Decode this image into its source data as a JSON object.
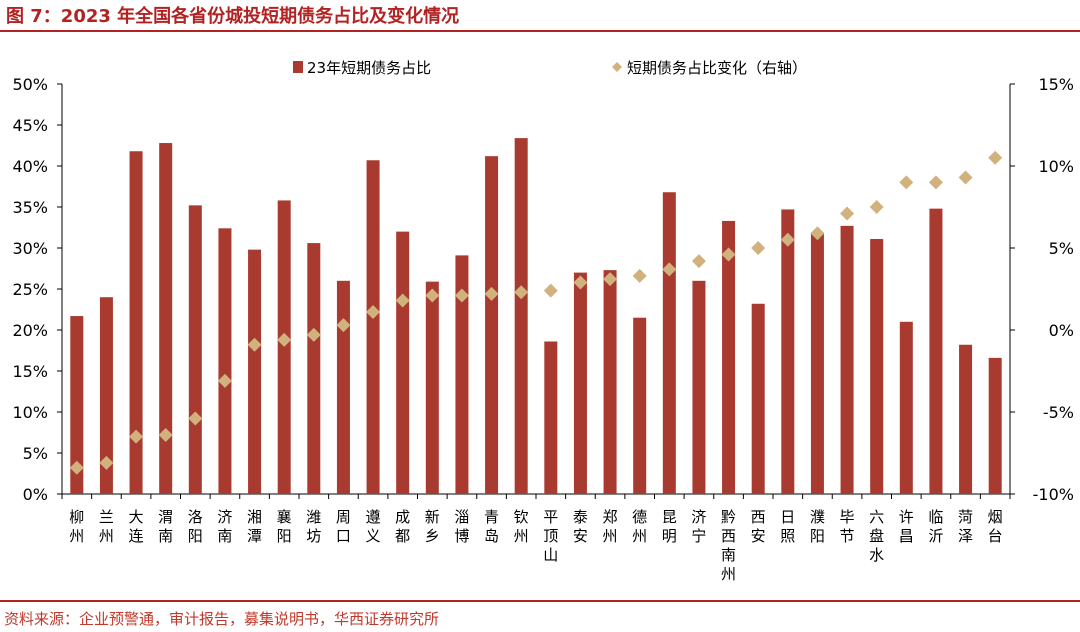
{
  "header": {
    "title": "图 7：2023 年全国各省份城投短期债务占比及变化情况"
  },
  "footer": {
    "source": "资料来源：企业预警通，审计报告，募集说明书，华西证券研究所"
  },
  "colors": {
    "bar": "#a93a2f",
    "marker": "#d1b27e",
    "accent": "#b22222"
  },
  "chart_data": {
    "type": "bar",
    "categories": [
      "柳州",
      "兰州",
      "大连",
      "渭南",
      "洛阳",
      "济南",
      "湘潭",
      "襄阳",
      "潍坊",
      "周口",
      "遵义",
      "成都",
      "新乡",
      "淄博",
      "青岛",
      "钦州",
      "平顶山",
      "泰安",
      "郑州",
      "德州",
      "昆明",
      "济宁",
      "黔西南州",
      "西安",
      "日照",
      "濮阳",
      "毕节",
      "六盘水",
      "许昌",
      "临沂",
      "菏泽",
      "烟台"
    ],
    "series": [
      {
        "name": "23年短期债务占比",
        "type": "bar",
        "axis": "left",
        "values": [
          21.7,
          24.0,
          41.8,
          42.8,
          35.2,
          32.4,
          29.8,
          35.8,
          30.6,
          26.0,
          40.7,
          32.0,
          25.9,
          29.1,
          41.2,
          43.4,
          18.6,
          27.0,
          27.3,
          21.5,
          36.8,
          26.0,
          33.3,
          23.2,
          34.7,
          31.9,
          32.7,
          31.1,
          21.0,
          34.8,
          18.2,
          16.6
        ]
      },
      {
        "name": "短期债务占比变化（右轴）",
        "type": "scatter",
        "axis": "right",
        "values": [
          -8.4,
          -8.1,
          -6.5,
          -6.4,
          -5.4,
          -3.1,
          -0.9,
          -0.6,
          -0.3,
          0.3,
          1.1,
          1.8,
          2.1,
          2.1,
          2.2,
          2.3,
          2.4,
          2.9,
          3.1,
          3.3,
          3.7,
          4.2,
          4.6,
          5.0,
          5.5,
          5.9,
          7.1,
          7.5,
          9.0,
          9.0,
          9.3,
          10.5
        ]
      }
    ],
    "left_axis": {
      "min": 0,
      "max": 50,
      "ticks": [
        0,
        5,
        10,
        15,
        20,
        25,
        30,
        35,
        40,
        45,
        50
      ],
      "tick_labels": [
        "0%",
        "5%",
        "10%",
        "15%",
        "20%",
        "25%",
        "30%",
        "35%",
        "40%",
        "45%",
        "50%"
      ]
    },
    "right_axis": {
      "min": -10,
      "max": 15,
      "ticks": [
        -10,
        -5,
        0,
        5,
        10,
        15
      ],
      "tick_labels": [
        "-10%",
        "-5%",
        "0%",
        "5%",
        "10%",
        "15%"
      ]
    },
    "legend_position": "top-center",
    "grid": false
  }
}
